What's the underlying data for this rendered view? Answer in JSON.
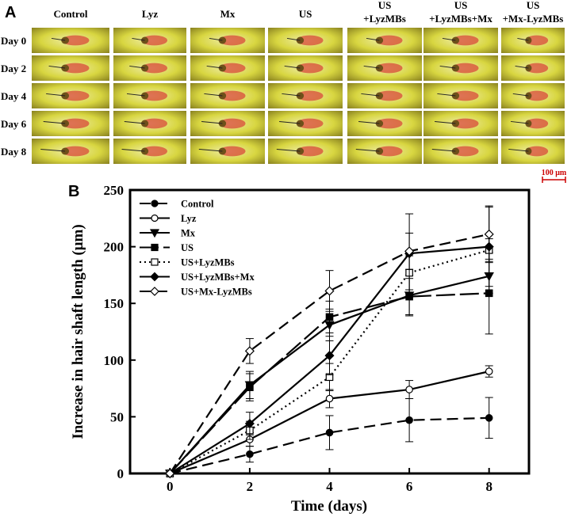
{
  "panel_a": {
    "label": "A",
    "columns": [
      [
        "Control"
      ],
      [
        "Lyz"
      ],
      [
        "Mx"
      ],
      [
        "US"
      ],
      [
        "US",
        "+LyzMBs"
      ],
      [
        "US",
        "+LyzMBs+Mx"
      ],
      [
        "US",
        "+Mx-LyzMBs"
      ]
    ],
    "rows": [
      "Day 0",
      "Day 2",
      "Day 4",
      "Day 6",
      "Day 8"
    ],
    "scale_bar": "100 μm",
    "colors": {
      "tissue_yellow": "#d8d640",
      "tissue_light": "#eeeca8",
      "tissue_dark": "#5a4a10",
      "follicle_red": "#d84a3a",
      "scale_red": "#cc0000"
    }
  },
  "chart_data": {
    "panel_label": "B",
    "type": "line",
    "xlabel": "Time (days)",
    "ylabel": "Increase in hair shaft length (μm)",
    "x": [
      0,
      2,
      4,
      6,
      8
    ],
    "xticks": [
      "0",
      "2",
      "4",
      "6",
      "8"
    ],
    "yticks": [
      "0",
      "50",
      "100",
      "150",
      "200",
      "250"
    ],
    "xlim": [
      -1,
      9
    ],
    "ylim": [
      0,
      250
    ],
    "legend_position": "top-left",
    "series": [
      {
        "name": "Control",
        "values": [
          0,
          17,
          36,
          47,
          49
        ],
        "err": [
          0,
          7,
          15,
          19,
          18
        ],
        "marker": "circle",
        "fill": "#000000",
        "dash": "14,7"
      },
      {
        "name": "Lyz",
        "values": [
          0,
          30,
          66,
          74,
          90
        ],
        "err": [
          0,
          6,
          8,
          8,
          5
        ],
        "marker": "circle",
        "fill": "#ffffff",
        "dash": ""
      },
      {
        "name": "Mx",
        "values": [
          0,
          78,
          131,
          157,
          174
        ],
        "err": [
          0,
          12,
          14,
          18,
          15
        ],
        "marker": "triangle-down",
        "fill": "#000000",
        "dash": ""
      },
      {
        "name": "US",
        "values": [
          0,
          76,
          138,
          156,
          159
        ],
        "err": [
          0,
          12,
          14,
          16,
          36
        ],
        "marker": "square",
        "fill": "#000000",
        "dash": "24,6"
      },
      {
        "name": "US+LyzMBs",
        "values": [
          0,
          38,
          85,
          177,
          197
        ],
        "err": [
          0,
          8,
          12,
          15,
          10
        ],
        "marker": "square",
        "fill": "#ffffff",
        "dash": "2,4"
      },
      {
        "name": "US+LyzMBs+Mx",
        "values": [
          0,
          44,
          104,
          194,
          200
        ],
        "err": [
          0,
          10,
          17,
          35,
          35
        ],
        "marker": "diamond",
        "fill": "#000000",
        "dash": ""
      },
      {
        "name": "US+Mx-LyzMBs",
        "values": [
          0,
          108,
          161,
          196,
          211
        ],
        "err": [
          0,
          11,
          18,
          16,
          25
        ],
        "marker": "diamond",
        "fill": "#ffffff",
        "dash": "14,7"
      }
    ]
  }
}
